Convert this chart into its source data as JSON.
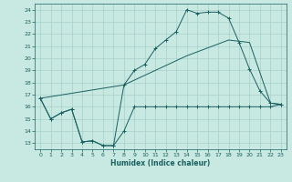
{
  "xlabel": "Humidex (Indice chaleur)",
  "xlim": [
    -0.5,
    23.5
  ],
  "ylim": [
    12.5,
    24.5
  ],
  "yticks": [
    13,
    14,
    15,
    16,
    17,
    18,
    19,
    20,
    21,
    22,
    23,
    24
  ],
  "xticks": [
    0,
    1,
    2,
    3,
    4,
    5,
    6,
    7,
    8,
    9,
    10,
    11,
    12,
    13,
    14,
    15,
    16,
    17,
    18,
    19,
    20,
    21,
    22,
    23
  ],
  "bg_color": "#c8e8e2",
  "grid_color": "#a8d0ca",
  "line_color": "#1a6060",
  "curve1_x": [
    0,
    1,
    2,
    3,
    4,
    5,
    6,
    7,
    8,
    9,
    10,
    11,
    12,
    13,
    14,
    15,
    16,
    17,
    18,
    19,
    20,
    21,
    22,
    23
  ],
  "curve1_y": [
    16.7,
    15.0,
    15.5,
    15.8,
    13.1,
    13.2,
    12.8,
    12.8,
    14.0,
    16.0,
    16.0,
    16.0,
    16.0,
    16.0,
    16.0,
    16.0,
    16.0,
    16.0,
    16.0,
    16.0,
    16.0,
    16.0,
    16.0,
    16.2
  ],
  "curve2_x": [
    0,
    1,
    2,
    3,
    4,
    5,
    6,
    7,
    8,
    9,
    10,
    11,
    12,
    13,
    14,
    15,
    16,
    17,
    18,
    19,
    20,
    21,
    22,
    23
  ],
  "curve2_y": [
    16.7,
    15.0,
    15.5,
    15.8,
    13.1,
    13.2,
    12.8,
    12.8,
    17.8,
    19.0,
    19.5,
    20.8,
    21.5,
    22.2,
    24.0,
    23.7,
    23.8,
    23.8,
    23.3,
    21.3,
    19.1,
    17.3,
    16.3,
    16.2
  ],
  "line3_x": [
    0,
    8,
    14,
    18,
    20,
    22,
    23
  ],
  "line3_y": [
    16.7,
    17.8,
    20.2,
    21.5,
    21.3,
    16.3,
    16.2
  ],
  "xlabel_fontsize": 5.5,
  "tick_fontsize": 4.5,
  "linewidth": 0.7,
  "markersize": 2.5
}
